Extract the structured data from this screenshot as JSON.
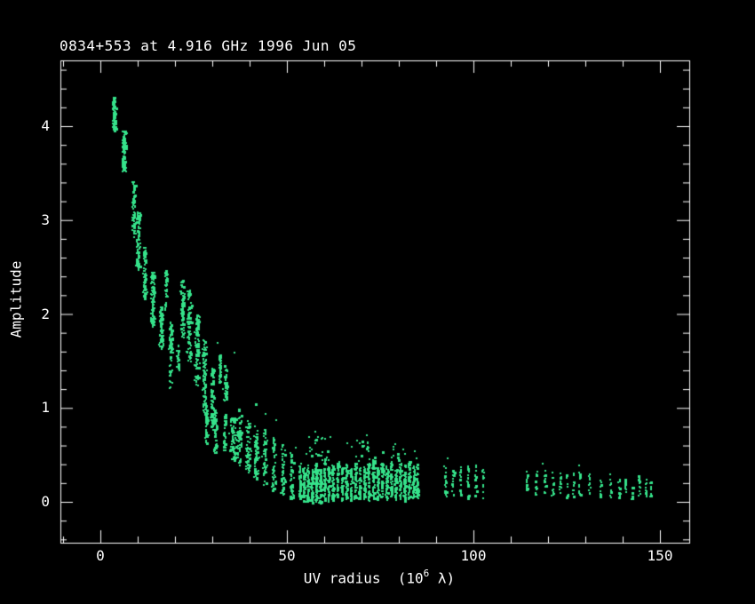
{
  "chart_data": {
    "type": "scatter",
    "title": "0834+553 at 4.916 GHz 1996 Jun 05",
    "xlabel": {
      "prefix": "UV radius  (10",
      "sup": "6",
      "suffix": " λ)"
    },
    "ylabel": "Amplitude",
    "x_ticks": {
      "major": [
        0,
        50,
        100,
        150
      ],
      "minor_step": 10,
      "minor_start": -10,
      "minor_end": 155
    },
    "y_ticks": {
      "major": [
        0,
        1,
        2,
        3,
        4
      ],
      "minor_step": 0.2,
      "minor_start": -0.4,
      "minor_end": 4.6
    },
    "x_range": [
      -10.7,
      157.9
    ],
    "y_range": [
      -0.435,
      4.7
    ],
    "grid": false,
    "legend": null,
    "background_color": "#000000",
    "axis_color": "#ffffff",
    "point_color": "#35e28a",
    "clusters_note": "each cluster = [uv_radius_center_1e6lambda, u_halfwidth, amp_min, amp_max, n_points]; vertical baseline tracks of visibility amplitude",
    "clusters": [
      [
        3.5,
        0.45,
        3.95,
        4.32,
        85
      ],
      [
        6.2,
        0.5,
        3.52,
        3.96,
        95
      ],
      [
        8.8,
        0.45,
        2.82,
        3.42,
        70
      ],
      [
        9.9,
        0.45,
        2.46,
        3.1,
        80
      ],
      [
        11.7,
        0.5,
        2.16,
        2.72,
        80
      ],
      [
        13.9,
        0.55,
        1.86,
        2.46,
        90
      ],
      [
        16.2,
        0.55,
        1.62,
        2.1,
        70
      ],
      [
        17.4,
        0.4,
        2.05,
        2.48,
        40
      ],
      [
        18.7,
        0.5,
        1.22,
        1.92,
        60
      ],
      [
        20.6,
        0.3,
        1.4,
        1.7,
        25
      ],
      [
        21.9,
        0.5,
        1.75,
        2.38,
        70
      ],
      [
        23.6,
        0.55,
        1.5,
        2.26,
        85
      ],
      [
        25.7,
        0.55,
        1.25,
        2.0,
        85
      ],
      [
        27.7,
        0.55,
        0.98,
        1.73,
        80
      ],
      [
        29.9,
        0.55,
        0.75,
        1.43,
        75
      ],
      [
        28.2,
        0.4,
        0.6,
        1.0,
        45
      ],
      [
        30.6,
        0.45,
        0.52,
        1.0,
        50
      ],
      [
        31.8,
        0.35,
        1.22,
        1.58,
        35
      ],
      [
        33.5,
        0.55,
        1.08,
        1.48,
        40
      ],
      [
        33.1,
        0.4,
        0.55,
        0.95,
        35
      ],
      [
        35.5,
        0.9,
        0.45,
        0.92,
        70
      ],
      [
        37.2,
        0.55,
        0.36,
        1.0,
        55
      ],
      [
        39.4,
        0.55,
        0.3,
        0.88,
        50
      ],
      [
        41.7,
        0.55,
        0.25,
        0.82,
        50
      ],
      [
        43.9,
        0.55,
        0.18,
        0.78,
        50
      ],
      [
        46.3,
        0.55,
        0.12,
        0.7,
        48
      ],
      [
        48.7,
        0.55,
        0.08,
        0.62,
        45
      ],
      [
        51.1,
        0.55,
        0.04,
        0.54,
        45
      ],
      [
        53.3,
        0.3,
        0.02,
        0.42,
        55
      ],
      [
        54.4,
        0.3,
        0.0,
        0.38,
        50
      ],
      [
        55.5,
        0.3,
        0.0,
        0.4,
        55
      ],
      [
        56.6,
        0.3,
        0.0,
        0.35,
        50
      ],
      [
        57.7,
        0.3,
        0.0,
        0.42,
        60
      ],
      [
        58.8,
        0.3,
        0.0,
        0.36,
        55
      ],
      [
        59.9,
        0.3,
        0.02,
        0.44,
        55
      ],
      [
        61.0,
        0.3,
        0.0,
        0.38,
        50
      ],
      [
        62.2,
        0.3,
        0.02,
        0.4,
        55
      ],
      [
        63.4,
        0.3,
        0.04,
        0.45,
        50
      ],
      [
        64.6,
        0.3,
        0.02,
        0.38,
        45
      ],
      [
        65.8,
        0.3,
        0.04,
        0.42,
        50
      ],
      [
        67.0,
        0.3,
        0.02,
        0.36,
        45
      ],
      [
        68.2,
        0.3,
        0.04,
        0.44,
        50
      ],
      [
        69.4,
        0.3,
        0.02,
        0.4,
        45
      ],
      [
        70.6,
        0.3,
        0.04,
        0.38,
        45
      ],
      [
        71.8,
        0.3,
        0.02,
        0.42,
        45
      ],
      [
        73.0,
        0.3,
        0.04,
        0.45,
        50
      ],
      [
        74.2,
        0.3,
        0.02,
        0.38,
        45
      ],
      [
        75.4,
        0.3,
        0.04,
        0.42,
        45
      ],
      [
        76.6,
        0.3,
        0.02,
        0.4,
        45
      ],
      [
        77.8,
        0.3,
        0.04,
        0.44,
        45
      ],
      [
        79.0,
        0.3,
        0.02,
        0.38,
        40
      ],
      [
        80.2,
        0.3,
        0.04,
        0.42,
        45
      ],
      [
        81.4,
        0.3,
        0.02,
        0.4,
        40
      ],
      [
        82.6,
        0.3,
        0.04,
        0.44,
        45
      ],
      [
        83.8,
        0.3,
        0.02,
        0.4,
        40
      ],
      [
        84.8,
        0.3,
        0.04,
        0.42,
        40
      ],
      [
        58.0,
        4.0,
        0.44,
        0.7,
        22
      ],
      [
        70.0,
        5.0,
        0.44,
        0.66,
        18
      ],
      [
        80.0,
        3.0,
        0.44,
        0.6,
        10
      ],
      [
        92.3,
        0.25,
        0.06,
        0.4,
        16
      ],
      [
        94.4,
        0.25,
        0.04,
        0.42,
        16
      ],
      [
        96.4,
        0.25,
        0.06,
        0.38,
        15
      ],
      [
        98.4,
        0.25,
        0.04,
        0.4,
        16
      ],
      [
        100.4,
        0.25,
        0.06,
        0.42,
        16
      ],
      [
        102.4,
        0.25,
        0.04,
        0.36,
        14
      ],
      [
        114.1,
        0.25,
        0.1,
        0.37,
        13
      ],
      [
        116.6,
        0.25,
        0.08,
        0.35,
        12
      ],
      [
        119.0,
        0.25,
        0.1,
        0.36,
        13
      ],
      [
        121.1,
        0.25,
        0.06,
        0.33,
        12
      ],
      [
        123.1,
        0.25,
        0.08,
        0.35,
        12
      ],
      [
        124.9,
        0.25,
        0.05,
        0.3,
        11
      ],
      [
        126.6,
        0.25,
        0.06,
        0.32,
        12
      ],
      [
        128.3,
        0.25,
        0.08,
        0.35,
        12
      ],
      [
        130.9,
        0.25,
        0.04,
        0.3,
        11
      ],
      [
        133.9,
        0.25,
        0.06,
        0.28,
        10
      ],
      [
        136.6,
        0.25,
        0.05,
        0.3,
        11
      ],
      [
        138.9,
        0.25,
        0.04,
        0.26,
        10
      ],
      [
        140.6,
        0.25,
        0.05,
        0.28,
        10
      ],
      [
        142.4,
        0.25,
        0.03,
        0.24,
        9
      ],
      [
        144.3,
        0.25,
        0.05,
        0.3,
        11
      ],
      [
        146.1,
        0.25,
        0.04,
        0.26,
        10
      ],
      [
        147.3,
        0.2,
        0.03,
        0.22,
        8
      ]
    ],
    "outliers": [
      [
        41.5,
        1.05
      ],
      [
        44.2,
        0.95
      ],
      [
        47.0,
        0.88
      ],
      [
        57.2,
        0.76
      ],
      [
        61.5,
        0.7
      ],
      [
        66.0,
        0.64
      ],
      [
        71.3,
        0.72
      ],
      [
        78.8,
        0.62
      ],
      [
        84.0,
        0.55
      ],
      [
        92.8,
        0.46
      ],
      [
        118.4,
        0.42
      ],
      [
        128.2,
        0.4
      ],
      [
        35.8,
        1.6
      ],
      [
        31.2,
        1.7
      ],
      [
        52.3,
        0.6
      ],
      [
        55.8,
        0.55
      ]
    ]
  }
}
